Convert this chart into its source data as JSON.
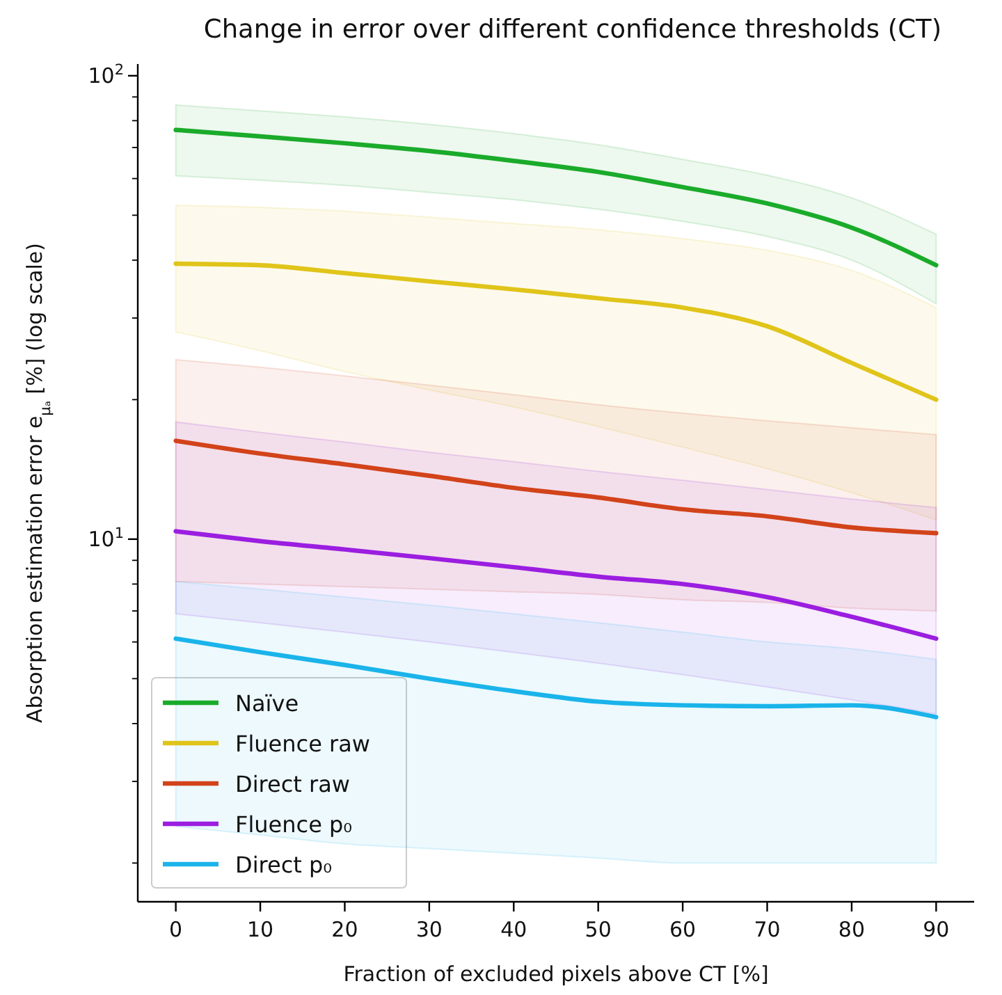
{
  "chart_data": {
    "type": "line",
    "title": "Change in error over different confidence thresholds (CT)",
    "xlabel": "Fraction of excluded pixels above CT [%]",
    "ylabel": "Absorption estimation error e$_{μₐ}$ [%] (log scale)",
    "log": "y",
    "grid": false,
    "legend": "bottom left",
    "marker": "none",
    "line_style": "solid",
    "xlim": [
      -4.5,
      94.5
    ],
    "xticks": [
      0,
      10,
      20,
      30,
      40,
      50,
      60,
      70,
      80,
      90
    ],
    "ylim": [
      1.65,
      106
    ],
    "yticks": [
      {
        "value": 2,
        "label": null
      },
      {
        "value": 3,
        "label": null
      },
      {
        "value": 4,
        "label": null
      },
      {
        "value": 5,
        "label": null
      },
      {
        "value": 6,
        "label": null
      },
      {
        "value": 7,
        "label": null
      },
      {
        "value": 8,
        "label": null
      },
      {
        "value": 9,
        "label": null
      },
      {
        "value": 10,
        "label": "10$^{1}$"
      },
      {
        "value": 20,
        "label": null
      },
      {
        "value": 30,
        "label": null
      },
      {
        "value": 40,
        "label": null
      },
      {
        "value": 50,
        "label": null
      },
      {
        "value": 60,
        "label": null
      },
      {
        "value": 70,
        "label": null
      },
      {
        "value": 80,
        "label": null
      },
      {
        "value": 90,
        "label": null
      },
      {
        "value": 100,
        "label": "10$^{2}$"
      }
    ],
    "x": [
      0,
      10,
      20,
      30,
      40,
      50,
      60,
      70,
      80,
      90
    ],
    "series": [
      {
        "name": "Naïve",
        "color": "#1aab2a",
        "values": [
          76.4,
          74,
          71.5,
          68.8,
          65.5,
          62,
          57.5,
          53,
          47,
          39
        ],
        "upper": [
          86.5,
          84,
          81.5,
          78.5,
          75,
          71,
          66,
          61,
          54.5,
          45.5
        ],
        "lower": [
          60.8,
          59.5,
          58,
          56,
          54,
          51.5,
          48.5,
          45,
          40,
          32.2
        ]
      },
      {
        "name": "Fluence raw",
        "color": "#e0c41a",
        "values": [
          39.3,
          39,
          37.5,
          36,
          34.6,
          33.1,
          31.6,
          28.8,
          24,
          20
        ],
        "upper": [
          52.5,
          52,
          51,
          49.5,
          48,
          46.5,
          44.5,
          42,
          38,
          31.6
        ],
        "lower": [
          28,
          25.5,
          23,
          21,
          19.3,
          17.5,
          15.8,
          14.2,
          12.6,
          11
        ]
      },
      {
        "name": "Direct raw",
        "color": "#d2431a",
        "values": [
          16.3,
          15.3,
          14.5,
          13.7,
          12.9,
          12.3,
          11.6,
          11.2,
          10.6,
          10.3
        ],
        "upper": [
          24.4,
          23.5,
          22.5,
          21.5,
          20.5,
          19.5,
          18.7,
          18,
          17.4,
          16.8
        ],
        "lower": [
          8.1,
          8,
          7.9,
          7.8,
          7.7,
          7.6,
          7.4,
          7.3,
          7.1,
          7
        ]
      },
      {
        "name": "Fluence p₀",
        "color": "#9b1ee0",
        "values": [
          10.4,
          9.9,
          9.5,
          9.1,
          8.7,
          8.3,
          8,
          7.5,
          6.8,
          6.1
        ],
        "upper": [
          17.9,
          17,
          16.2,
          15.4,
          14.7,
          14,
          13.4,
          12.8,
          12.2,
          11.7
        ],
        "lower": [
          6.9,
          6.6,
          6.3,
          6,
          5.7,
          5.4,
          5.1,
          4.8,
          4.5,
          4.2
        ]
      },
      {
        "name": "Direct p₀",
        "color": "#1ab4ea",
        "values": [
          6.1,
          5.7,
          5.35,
          5,
          4.7,
          4.46,
          4.38,
          4.36,
          4.38,
          4.13
        ],
        "upper": [
          8.1,
          7.8,
          7.5,
          7.2,
          6.9,
          6.6,
          6.3,
          6,
          5.8,
          5.5
        ],
        "lower": [
          2.4,
          2.3,
          2.2,
          2.15,
          2.1,
          2.05,
          2,
          2,
          2,
          2
        ]
      }
    ]
  }
}
